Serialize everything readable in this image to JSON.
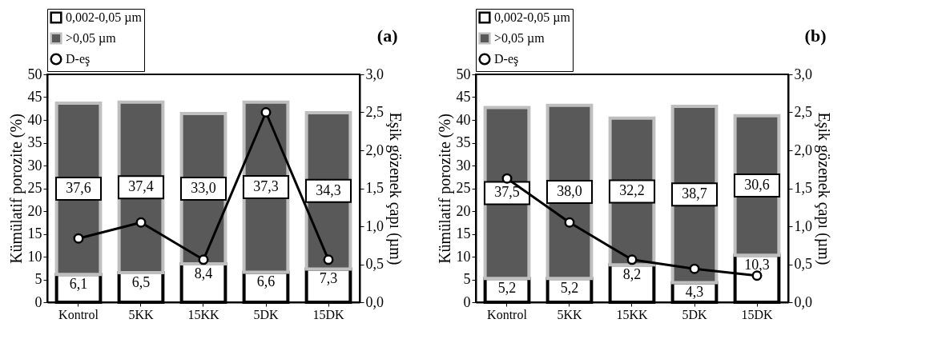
{
  "chart_data": [
    {
      "type": "bar",
      "stacked": true,
      "categories": [
        "Kontrol",
        "5KK",
        "15KK",
        "5DK",
        "15DK"
      ],
      "ylabel": "Kümülatif porozite (%)",
      "y2label": "Eşik gözenek çapı (µm)",
      "ylim": [
        0,
        50
      ],
      "yticks": [
        0,
        5,
        10,
        15,
        20,
        25,
        30,
        35,
        40,
        45,
        50
      ],
      "y2lim": [
        0,
        3
      ],
      "y2ticks": [
        {
          "value": 0,
          "label": "0,0"
        },
        {
          "value": 0.5,
          "label": "0,5"
        },
        {
          "value": 1,
          "label": "1,0"
        },
        {
          "value": 1.5,
          "label": "1,5"
        },
        {
          "value": 2,
          "label": "2,0"
        },
        {
          "value": 2.5,
          "label": "2,5"
        },
        {
          "value": 3,
          "label": "3,0"
        }
      ],
      "legend": "top",
      "annotations": [
        "(a)"
      ],
      "series": [
        {
          "name": "0,002-0,05 µm",
          "color": "#ffffff",
          "values": [
            6.1,
            6.5,
            8.4,
            6.6,
            7.3
          ],
          "value_labels": [
            "6,1",
            "6,5",
            "8,4",
            "6,6",
            "7,3"
          ]
        },
        {
          "name": ">0,05 µm",
          "color": "#595959",
          "values": [
            37.6,
            37.4,
            33.0,
            37.3,
            34.3
          ],
          "value_labels": [
            "37,6",
            "37,4",
            "33,0",
            "37,3",
            "34,3"
          ]
        },
        {
          "name": "D-eş",
          "type": "line",
          "axis": "y2",
          "color": "#000000",
          "marker": "circle",
          "values": [
            0.84,
            1.05,
            0.56,
            2.5,
            0.56
          ]
        }
      ]
    },
    {
      "type": "bar",
      "stacked": true,
      "categories": [
        "Kontrol",
        "5KK",
        "15KK",
        "5DK",
        "15DK"
      ],
      "ylabel": "Kümülatif porozite (%)",
      "y2label": "Eşik gözenek çapı (µm)",
      "ylim": [
        0,
        50
      ],
      "yticks": [
        0,
        5,
        10,
        15,
        20,
        25,
        30,
        35,
        40,
        45,
        50
      ],
      "y2lim": [
        0,
        3
      ],
      "y2ticks": [
        {
          "value": 0,
          "label": "0,0"
        },
        {
          "value": 0.5,
          "label": "0,5"
        },
        {
          "value": 1,
          "label": "1,0"
        },
        {
          "value": 1.5,
          "label": "1,5"
        },
        {
          "value": 2,
          "label": "2,0"
        },
        {
          "value": 2.5,
          "label": "2,5"
        },
        {
          "value": 3,
          "label": "3,0"
        }
      ],
      "legend": "top",
      "annotations": [
        "(b)"
      ],
      "series": [
        {
          "name": "0,002-0,05 µm",
          "color": "#ffffff",
          "values": [
            5.2,
            5.2,
            8.2,
            4.3,
            10.3
          ],
          "value_labels": [
            "5,2",
            "5,2",
            "8,2",
            "4,3",
            "10,3"
          ]
        },
        {
          "name": ">0,05 µm",
          "color": "#595959",
          "values": [
            37.5,
            38.0,
            32.2,
            38.7,
            30.6
          ],
          "value_labels": [
            "37,5",
            "38,0",
            "32,2",
            "38,7",
            "30,6"
          ]
        },
        {
          "name": "D-eş",
          "type": "line",
          "axis": "y2",
          "color": "#000000",
          "marker": "circle",
          "values": [
            1.63,
            1.05,
            0.56,
            0.44,
            0.35
          ]
        }
      ]
    }
  ]
}
